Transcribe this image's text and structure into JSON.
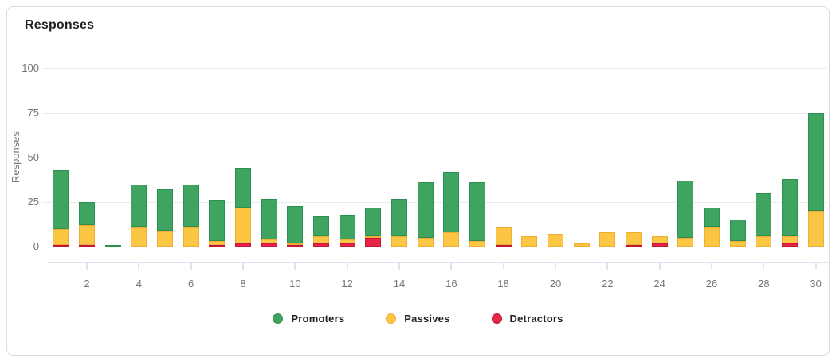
{
  "card": {
    "title": "Responses"
  },
  "chart_data": {
    "type": "bar",
    "subtype": "stacked-vertical",
    "title": "Responses",
    "ylabel": "Responses",
    "xlabel": "",
    "ylim": [
      0,
      100
    ],
    "y_ticks": [
      0,
      25,
      50,
      75,
      100
    ],
    "grid": true,
    "legend_position": "bottom-center",
    "categories": [
      1,
      2,
      3,
      4,
      5,
      6,
      7,
      8,
      9,
      10,
      11,
      12,
      13,
      14,
      15,
      16,
      17,
      18,
      19,
      20,
      21,
      22,
      23,
      24,
      25,
      26,
      27,
      28,
      29,
      30
    ],
    "x_tick_labeled_categories": [
      2,
      4,
      6,
      8,
      10,
      12,
      14,
      16,
      18,
      20,
      22,
      24,
      26,
      28,
      30
    ],
    "stack_order_bottom_to_top": [
      "Detractors",
      "Passives",
      "Promoters"
    ],
    "series": [
      {
        "name": "Promoters",
        "color": "#3EA45F",
        "border_color": "#2B9153",
        "values": [
          33,
          13,
          1,
          24,
          23,
          24,
          23,
          22,
          23,
          21,
          11,
          14,
          16,
          21,
          31,
          34,
          33,
          0,
          0,
          0,
          0,
          0,
          0,
          0,
          32,
          11,
          12,
          24,
          32,
          55
        ]
      },
      {
        "name": "Passives",
        "color": "#FCC645",
        "border_color": "#EFAD35",
        "values": [
          9,
          11,
          0,
          11,
          9,
          11,
          2,
          20,
          2,
          1,
          4,
          2,
          1,
          6,
          5,
          8,
          3,
          10,
          6,
          7,
          2,
          8,
          7,
          4,
          5,
          11,
          3,
          6,
          4,
          20
        ]
      },
      {
        "name": "Detractors",
        "color": "#E62549",
        "border_color": "#C2163B",
        "values": [
          1,
          1,
          0,
          0,
          0,
          0,
          1,
          2,
          2,
          1,
          2,
          2,
          5,
          0,
          0,
          0,
          0,
          1,
          0,
          0,
          0,
          0,
          1,
          2,
          0,
          0,
          0,
          0,
          2,
          0
        ]
      }
    ],
    "colors": {
      "promoters": "#3EA45F",
      "passives": "#FCC645",
      "detractors": "#E62549",
      "gridline": "#ebebeb",
      "axis": "#dde3f1",
      "tick_text": "#757575",
      "title_text": "#212121",
      "card_border": "#dadce0"
    }
  }
}
